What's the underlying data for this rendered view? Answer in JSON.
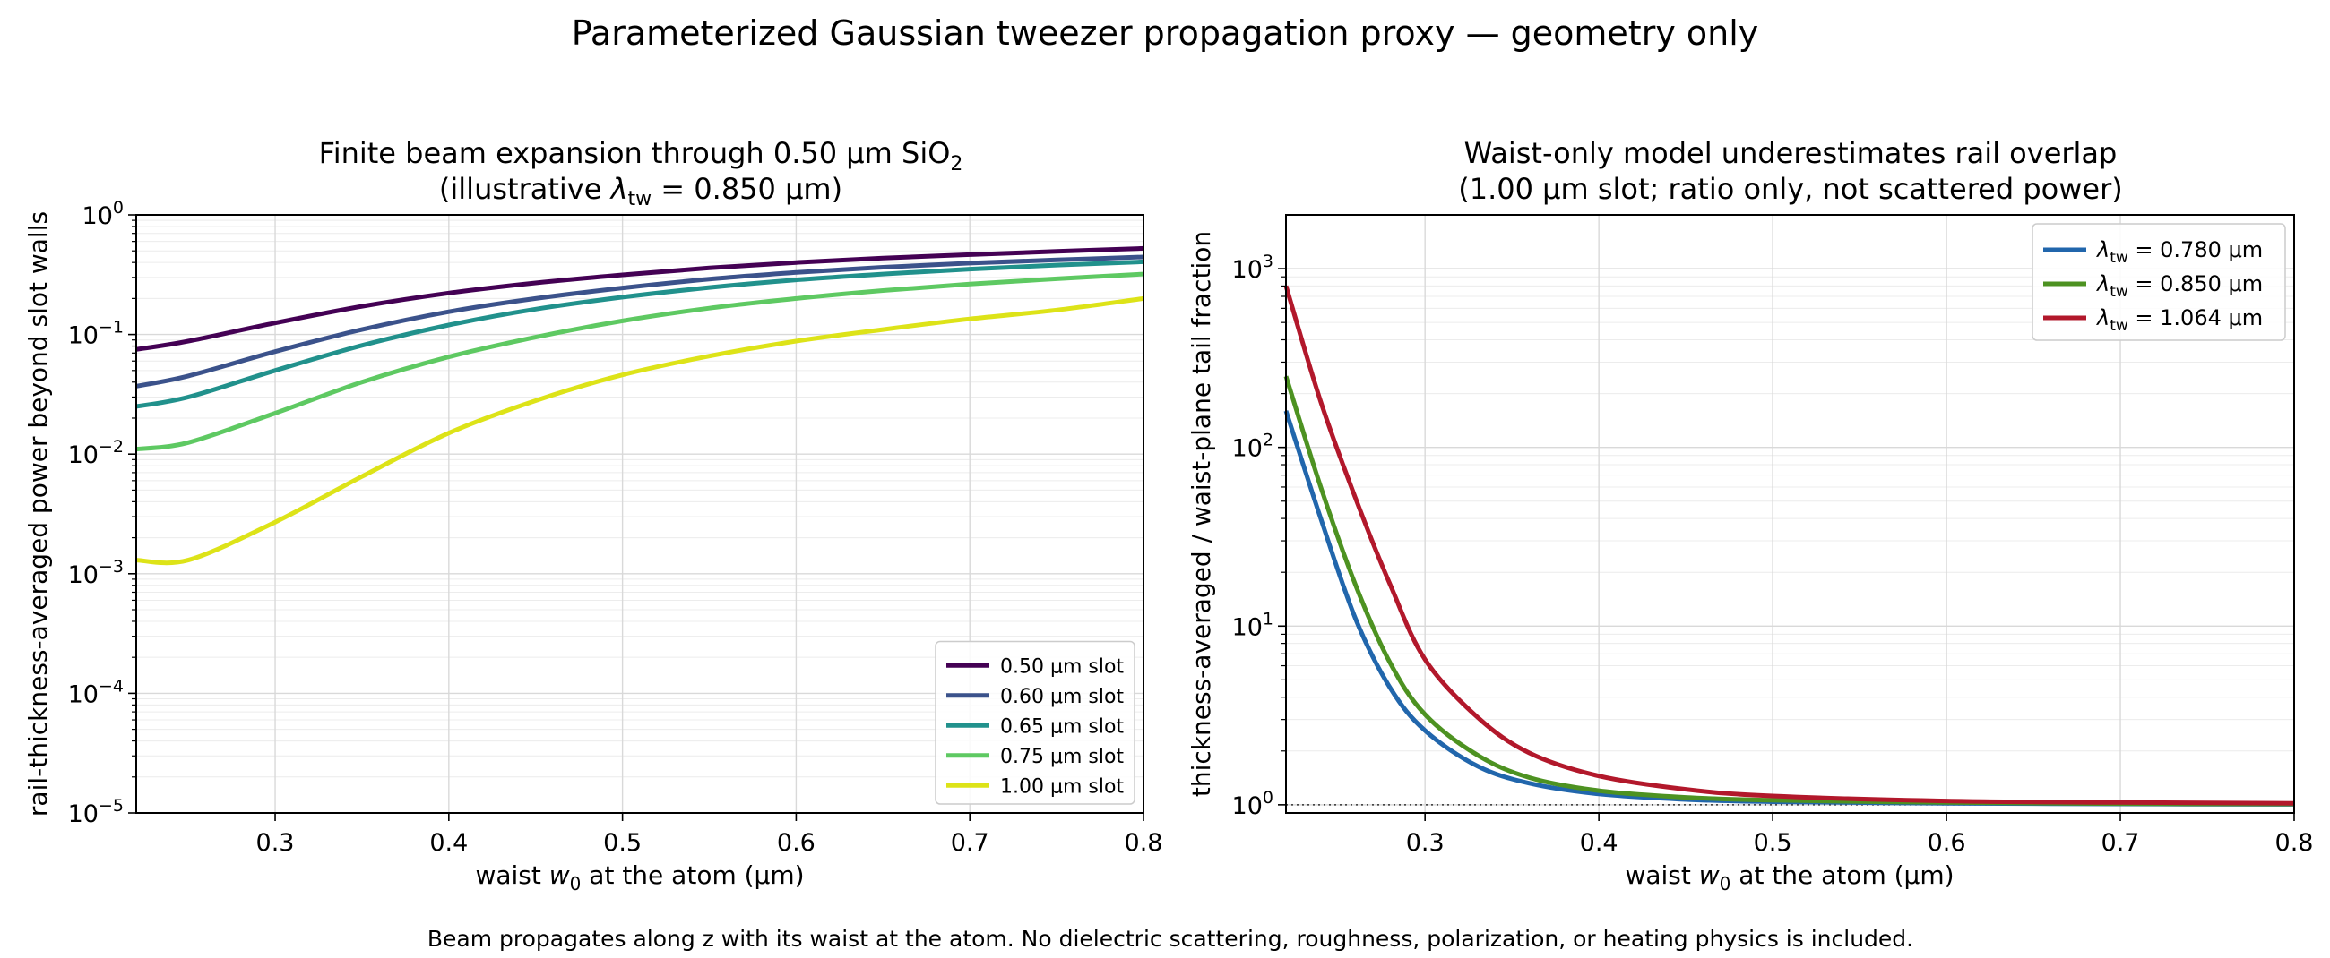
{
  "figure": {
    "suptitle": "Parameterized Gaussian tweezer propagation proxy — geometry only",
    "caption": "Beam propagates along z with its waist at the atom. No dielectric scattering, roughness, polarization, or heating physics is included."
  },
  "chart_data": [
    {
      "type": "line",
      "title_line1": "Finite beam expansion through 0.50 μm SiO",
      "title_line1_sub": "2",
      "title_line2_pre": "(illustrative ",
      "title_line2_sym": "λ",
      "title_line2_symsub": "tw",
      "title_line2_post": " = 0.850 μm)",
      "xlabel_pre": "waist ",
      "xlabel_sym": "w",
      "xlabel_symsub": "0",
      "xlabel_post": " at the atom (μm)",
      "ylabel": "rail-thickness-averaged power beyond slot walls",
      "xlim": [
        0.22,
        0.8
      ],
      "ylim": [
        1e-05,
        1
      ],
      "yscale": "log",
      "xticks": [
        "0.3",
        "0.4",
        "0.5",
        "0.6",
        "0.7",
        "0.8"
      ],
      "yticks_exp": [
        "−5",
        "−4",
        "−3",
        "−2",
        "−1",
        "0"
      ],
      "ytick_base": "10",
      "grid": true,
      "legend_position": "lower-right",
      "x": [
        0.22,
        0.25,
        0.3,
        0.35,
        0.4,
        0.45,
        0.5,
        0.55,
        0.6,
        0.65,
        0.7,
        0.75,
        0.8
      ],
      "series": [
        {
          "name": "0.50 μm slot",
          "color": "#440154",
          "values": [
            0.075,
            0.088,
            0.125,
            0.172,
            0.222,
            0.27,
            0.315,
            0.36,
            0.4,
            0.435,
            0.465,
            0.495,
            0.525
          ]
        },
        {
          "name": "0.60 μm slot",
          "color": "#3b528b",
          "values": [
            0.037,
            0.045,
            0.072,
            0.11,
            0.155,
            0.2,
            0.245,
            0.29,
            0.33,
            0.365,
            0.395,
            0.42,
            0.445
          ]
        },
        {
          "name": "0.65 μm slot",
          "color": "#21918c",
          "values": [
            0.025,
            0.03,
            0.05,
            0.081,
            0.12,
            0.163,
            0.205,
            0.247,
            0.286,
            0.32,
            0.352,
            0.38,
            0.405
          ]
        },
        {
          "name": "0.75 μm slot",
          "color": "#5ec962",
          "values": [
            0.011,
            0.0125,
            0.022,
            0.04,
            0.065,
            0.095,
            0.13,
            0.166,
            0.2,
            0.233,
            0.264,
            0.292,
            0.32
          ]
        },
        {
          "name": "1.00 μm slot",
          "color": "#dde318",
          "values": [
            0.0013,
            0.0013,
            0.0027,
            0.0065,
            0.015,
            0.028,
            0.046,
            0.066,
            0.088,
            0.11,
            0.135,
            0.16,
            0.2
          ]
        }
      ]
    },
    {
      "type": "line",
      "title_line1": "Waist-only model underestimates rail overlap",
      "title_line2": "(1.00 μm slot; ratio only, not scattered power)",
      "xlabel_pre": "waist ",
      "xlabel_sym": "w",
      "xlabel_symsub": "0",
      "xlabel_post": " at the atom (μm)",
      "ylabel": "thickness-averaged / waist-plane tail fraction",
      "xlim": [
        0.22,
        0.8
      ],
      "ylim": [
        0.9,
        2000
      ],
      "yscale": "log",
      "xticks": [
        "0.3",
        "0.4",
        "0.5",
        "0.6",
        "0.7",
        "0.8"
      ],
      "yticks_exp": [
        "0",
        "1",
        "2",
        "3"
      ],
      "ytick_base": "10",
      "grid": true,
      "reference_line": 1.0,
      "legend_position": "upper-right",
      "legend_sym": "λ",
      "legend_symsub": "tw",
      "x": [
        0.22,
        0.24,
        0.26,
        0.28,
        0.3,
        0.33,
        0.36,
        0.4,
        0.45,
        0.5,
        0.6,
        0.7,
        0.8
      ],
      "series": [
        {
          "name": " = 0.780 μm",
          "color": "#2166ac",
          "values": [
            160,
            40,
            11,
            4.5,
            2.6,
            1.65,
            1.32,
            1.15,
            1.07,
            1.04,
            1.02,
            1.01,
            1.005
          ]
        },
        {
          "name": " = 0.850 μm",
          "color": "#4d9221",
          "values": [
            250,
            60,
            17,
            6.2,
            3.2,
            1.9,
            1.42,
            1.2,
            1.1,
            1.06,
            1.03,
            1.015,
            1.01
          ]
        },
        {
          "name": " = 1.064 μm",
          "color": "#b2182b",
          "values": [
            800,
            180,
            52,
            17,
            6.5,
            3.1,
            1.95,
            1.45,
            1.22,
            1.12,
            1.05,
            1.03,
            1.02
          ]
        }
      ]
    }
  ]
}
